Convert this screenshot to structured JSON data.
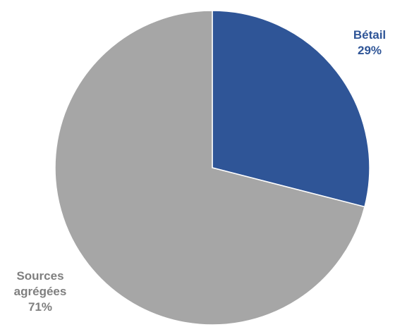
{
  "chart_data": {
    "type": "pie",
    "slices": [
      {
        "label": "Bétail",
        "value": 29,
        "value_label": "29%",
        "color": "#2f5597"
      },
      {
        "label": "Sources agrégées",
        "value": 71,
        "value_label": "71%",
        "color": "#a6a6a6"
      }
    ],
    "label_lines": [
      [
        "Bétail",
        "29%"
      ],
      [
        "Sources",
        "agrégées",
        "71%"
      ]
    ],
    "start_angle": "12 o'clock",
    "direction": "clockwise",
    "legend": "none"
  }
}
